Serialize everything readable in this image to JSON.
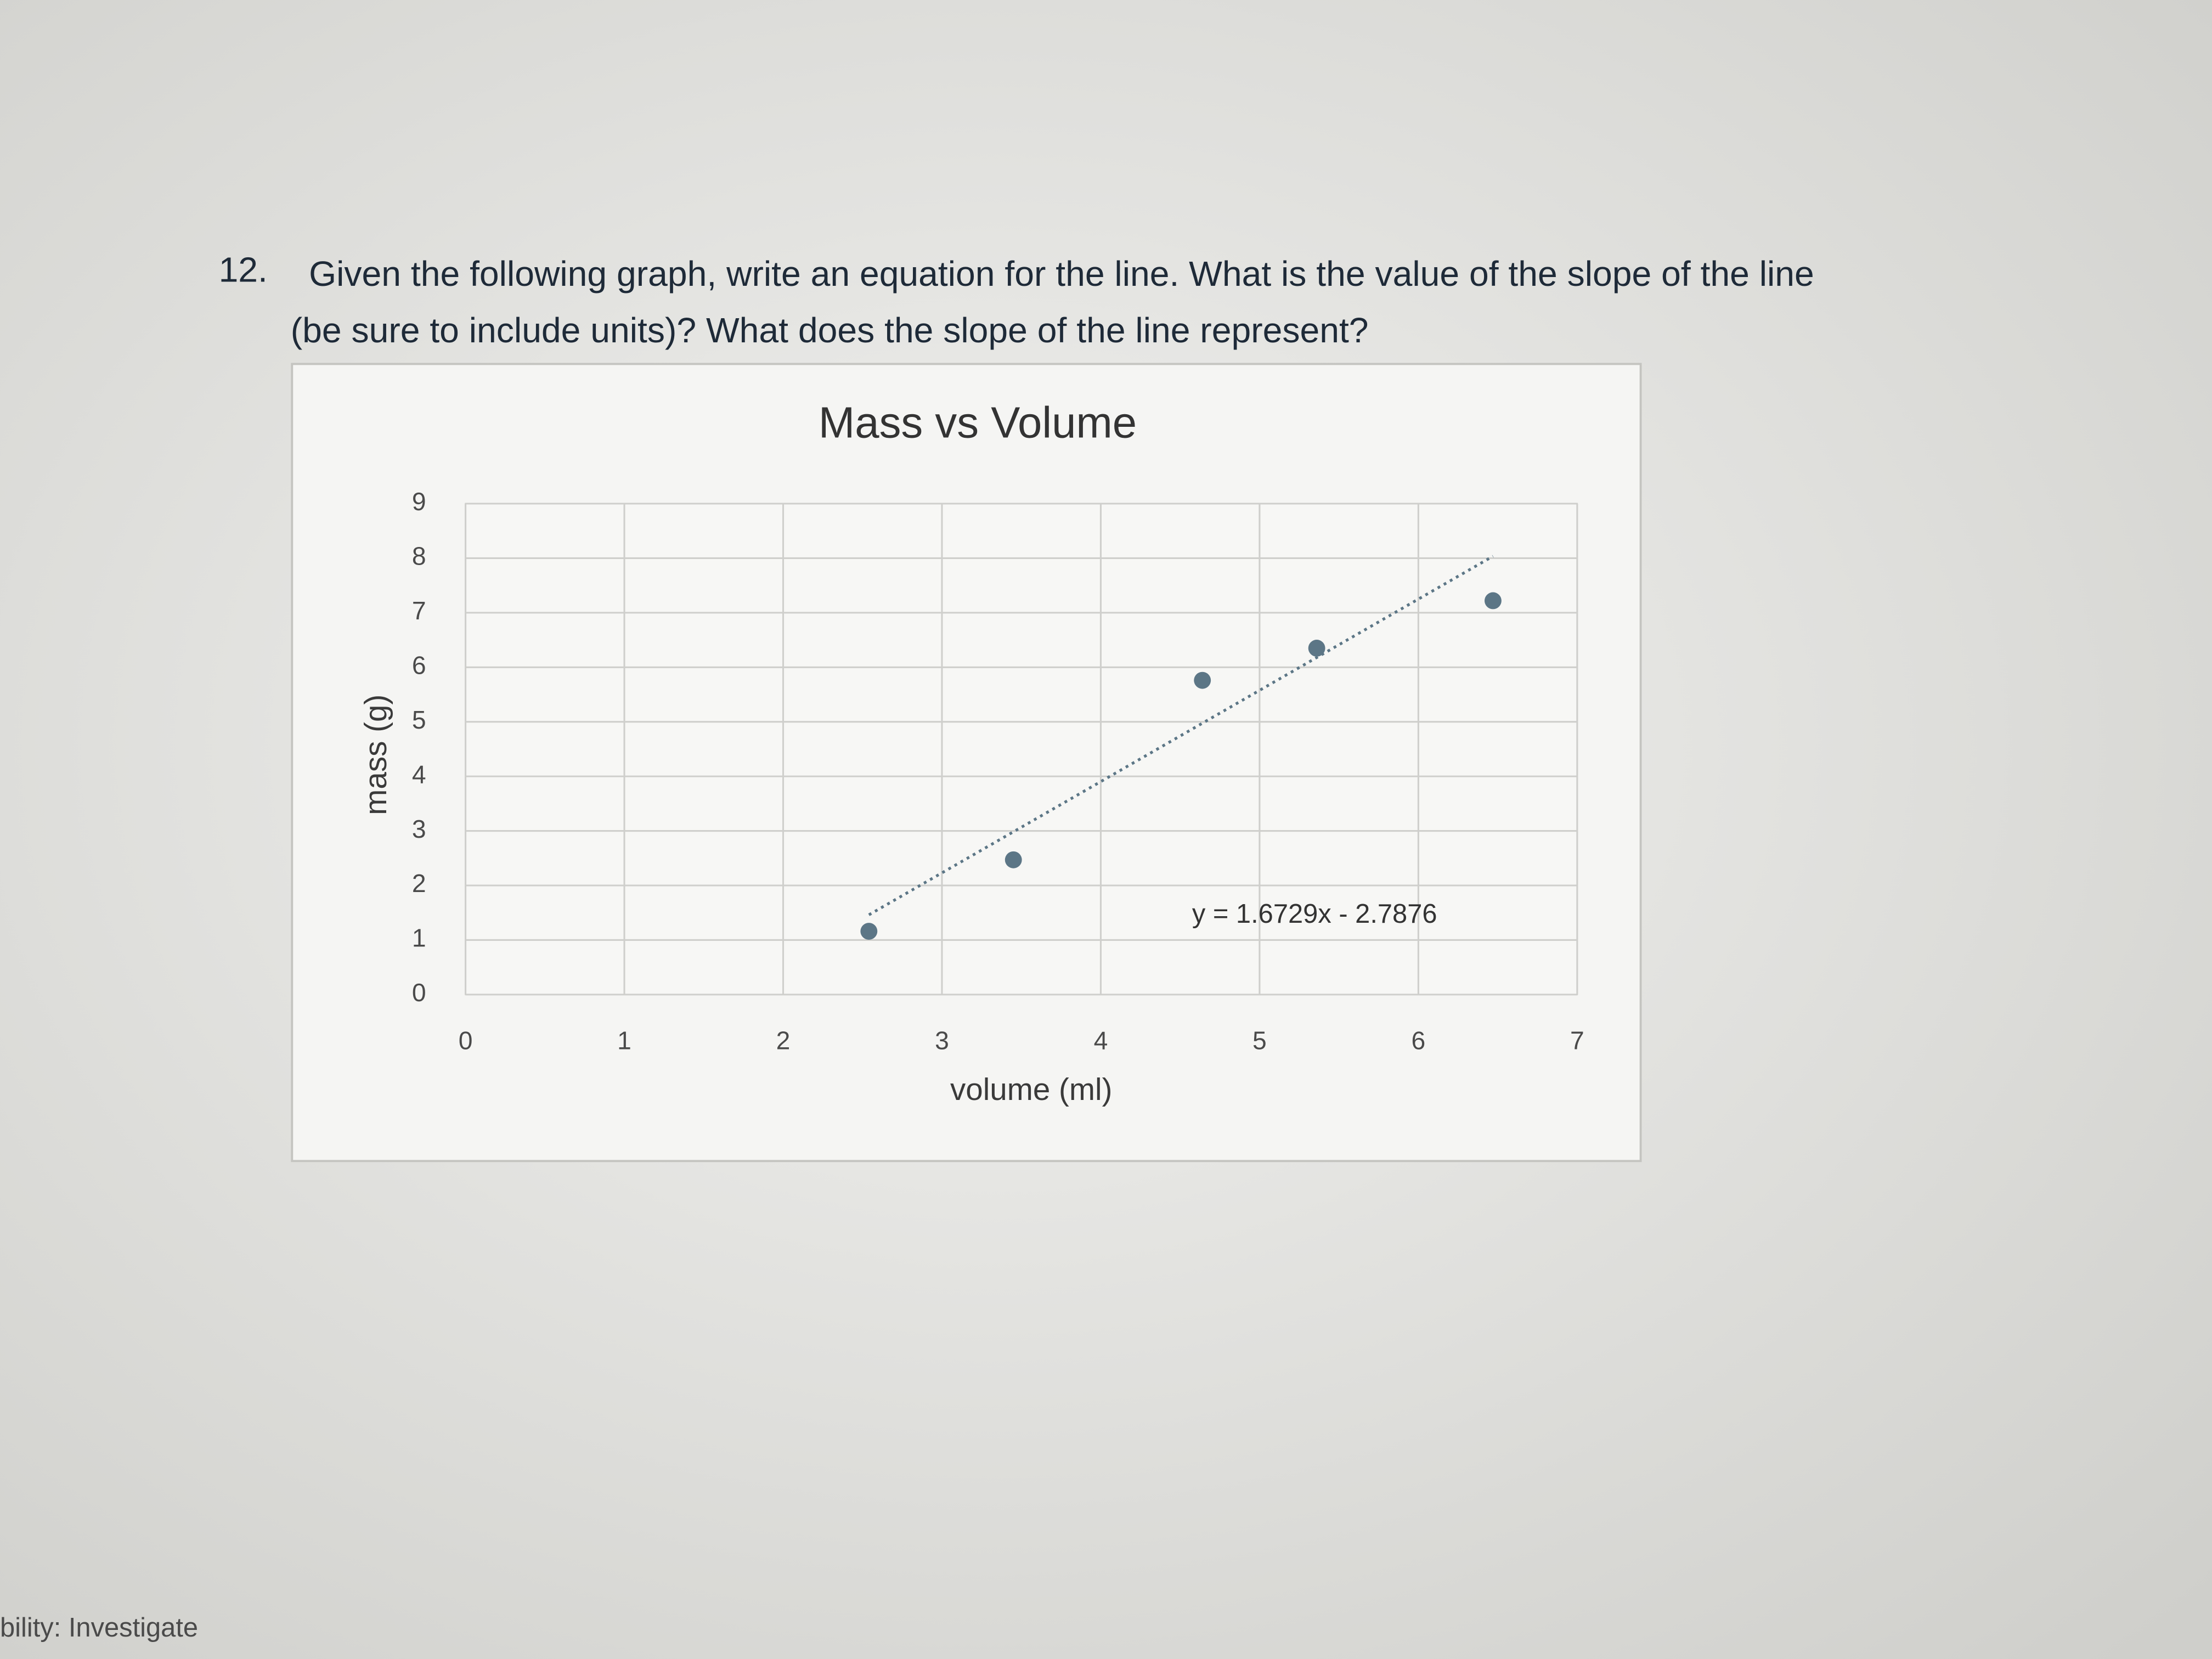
{
  "question": {
    "number": "12.",
    "lines": [
      "Given the following graph, write an equation for the line.  What is the value of the slope of the line",
      "(be sure to include units)?   What does the slope of the line represent?"
    ]
  },
  "chart_data": {
    "type": "scatter",
    "title": "Mass vs Volume",
    "x_label": "volume (ml)",
    "y_label": "mass (g)",
    "series": [
      {
        "color": "#5c7686",
        "x": [
          2.54,
          3.45,
          4.64,
          5.36,
          6.47
        ],
        "values": [
          1.16,
          2.47,
          5.76,
          6.35,
          7.22
        ]
      }
    ],
    "trendline": {
      "slope": 1.6729,
      "intercept": -2.7876,
      "label": "y = 1.6729x - 2.7876"
    },
    "xlim": [
      0,
      7
    ],
    "xticks": [
      0,
      1,
      2,
      3,
      4,
      5,
      6,
      7
    ],
    "ylim": [
      0,
      9
    ],
    "yticks": [
      0,
      1,
      2,
      3,
      4,
      5,
      6,
      7,
      8,
      9
    ],
    "grid": true
  },
  "status_bar": {
    "text": "bility: Investigate"
  }
}
